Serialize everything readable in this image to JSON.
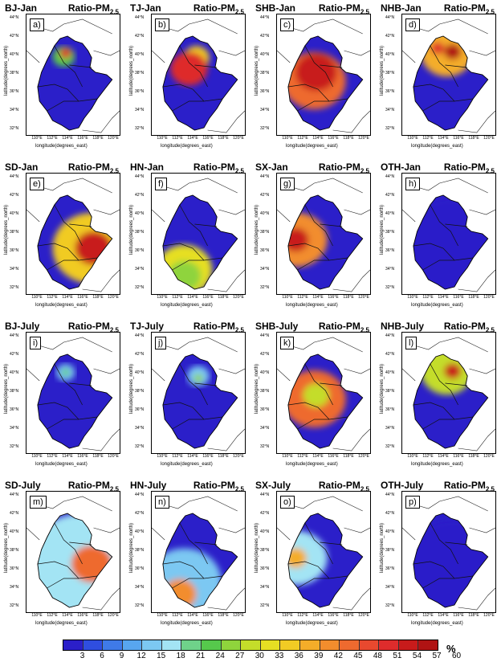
{
  "panels": [
    {
      "left": "BJ-Jan",
      "tag": "a)",
      "ratio_main": "Ratio-PM",
      "ratio_sub": "2.5",
      "hot": [
        [
          0.4,
          0.35,
          0.12,
          60
        ],
        [
          0.42,
          0.32,
          0.06,
          9
        ]
      ]
    },
    {
      "left": "TJ-Jan",
      "tag": "b)",
      "ratio_main": "Ratio-PM",
      "ratio_sub": "2.5",
      "hot": [
        [
          0.48,
          0.36,
          0.14,
          40
        ],
        [
          0.48,
          0.38,
          0.05,
          10
        ],
        [
          0.4,
          0.45,
          0.2,
          12
        ]
      ]
    },
    {
      "left": "SHB-Jan",
      "tag": "c)",
      "ratio_main": "Ratio-PM",
      "ratio_sub": "2.5",
      "hot": [
        [
          0.4,
          0.55,
          0.34,
          22
        ],
        [
          0.42,
          0.48,
          0.22,
          8
        ],
        [
          0.44,
          0.44,
          0.1,
          3
        ]
      ]
    },
    {
      "left": "NHB-Jan",
      "tag": "d)",
      "ratio_main": "Ratio-PM",
      "ratio_sub": "2.5",
      "hot": [
        [
          0.48,
          0.32,
          0.28,
          35
        ],
        [
          0.54,
          0.31,
          0.09,
          1
        ],
        [
          0.38,
          0.28,
          0.07,
          12
        ]
      ]
    },
    {
      "left": "SD-Jan",
      "tag": "e)",
      "ratio_main": "Ratio-PM",
      "ratio_sub": "2.5",
      "hot": [
        [
          0.7,
          0.62,
          0.42,
          40
        ],
        [
          0.72,
          0.62,
          0.2,
          5
        ]
      ]
    },
    {
      "left": "HN-Jan",
      "tag": "f)",
      "ratio_main": "Ratio-PM",
      "ratio_sub": "2.5",
      "hot": [
        [
          0.35,
          0.8,
          0.3,
          45
        ],
        [
          0.35,
          0.85,
          0.18,
          55
        ]
      ]
    },
    {
      "left": "SX-Jan",
      "tag": "g)",
      "ratio_main": "Ratio-PM",
      "ratio_sub": "2.5",
      "hot": [
        [
          0.22,
          0.55,
          0.32,
          30
        ],
        [
          0.2,
          0.55,
          0.14,
          5
        ]
      ]
    },
    {
      "left": "OTH-Jan",
      "tag": "h)",
      "ratio_main": "Ratio-PM",
      "ratio_sub": "2.5",
      "hot": [
        [
          0.52,
          0.62,
          0.6,
          200
        ],
        [
          0.8,
          0.95,
          0.15,
          15
        ]
      ]
    },
    {
      "left": "BJ-July",
      "tag": "i)",
      "ratio_main": "Ratio-PM",
      "ratio_sub": "2.5",
      "hot": [
        [
          0.42,
          0.33,
          0.1,
          180
        ],
        [
          0.42,
          0.33,
          0.04,
          60
        ]
      ]
    },
    {
      "left": "TJ-July",
      "tag": "j)",
      "ratio_main": "Ratio-PM",
      "ratio_sub": "2.5",
      "hot": [
        [
          0.5,
          0.36,
          0.12,
          180
        ],
        [
          0.5,
          0.38,
          0.05,
          55
        ]
      ]
    },
    {
      "left": "SHB-July",
      "tag": "k)",
      "ratio_main": "Ratio-PM",
      "ratio_sub": "2.5",
      "hot": [
        [
          0.4,
          0.55,
          0.34,
          120
        ],
        [
          0.42,
          0.52,
          0.14,
          50
        ]
      ]
    },
    {
      "left": "NHB-July",
      "tag": "l)",
      "ratio_main": "Ratio-PM",
      "ratio_sub": "2.5",
      "hot": [
        [
          0.48,
          0.32,
          0.28,
          150
        ],
        [
          0.54,
          0.32,
          0.09,
          5
        ]
      ]
    },
    {
      "left": "SD-July",
      "tag": "m)",
      "ratio_main": "Ratio-PM",
      "ratio_sub": "2.5",
      "hot": [
        [
          0.6,
          0.6,
          0.6,
          170
        ],
        [
          0.7,
          0.6,
          0.22,
          20
        ]
      ]
    },
    {
      "left": "HN-July",
      "tag": "n)",
      "ratio_main": "Ratio-PM",
      "ratio_sub": "2.5",
      "hot": [
        [
          0.35,
          0.75,
          0.4,
          180
        ],
        [
          0.3,
          0.85,
          0.18,
          30
        ]
      ]
    },
    {
      "left": "SX-July",
      "tag": "o)",
      "ratio_main": "Ratio-PM",
      "ratio_sub": "2.5",
      "hot": [
        [
          0.22,
          0.55,
          0.32,
          170
        ],
        [
          0.2,
          0.55,
          0.12,
          35
        ]
      ]
    },
    {
      "left": "OTH-July",
      "tag": "p)",
      "ratio_main": "Ratio-PM",
      "ratio_sub": "2.5",
      "hot": [
        [
          0.55,
          0.65,
          0.6,
          200
        ],
        [
          0.8,
          0.95,
          0.15,
          20
        ]
      ]
    }
  ],
  "axes": {
    "lat_ticks": [
      "44°N",
      "42°N",
      "40°N",
      "38°N",
      "36°N",
      "34°N",
      "32°N"
    ],
    "lon_ticks": [
      "110°E",
      "112°E",
      "114°E",
      "116°E",
      "118°E",
      "120°E"
    ],
    "xlabel": "longitude(degrees_east)",
    "ylabel": "latitude(degrees_north)"
  },
  "colorbar": {
    "unit": "%",
    "ticks": [
      "3",
      "6",
      "9",
      "12",
      "15",
      "18",
      "21",
      "24",
      "27",
      "30",
      "33",
      "36",
      "39",
      "42",
      "45",
      "48",
      "51",
      "54",
      "57",
      "60"
    ],
    "colors": [
      "#2b1fc9",
      "#2f4ee0",
      "#3f7ae8",
      "#58a6ef",
      "#7cc8f2",
      "#a3e4f4",
      "#6fd28a",
      "#56c94c",
      "#8fd43c",
      "#c4dd2a",
      "#e6df23",
      "#f1cb24",
      "#f4ad29",
      "#f28d2d",
      "#ee6a2f",
      "#e8492f",
      "#de2c2c",
      "#c81b1b",
      "#b01313"
    ]
  }
}
